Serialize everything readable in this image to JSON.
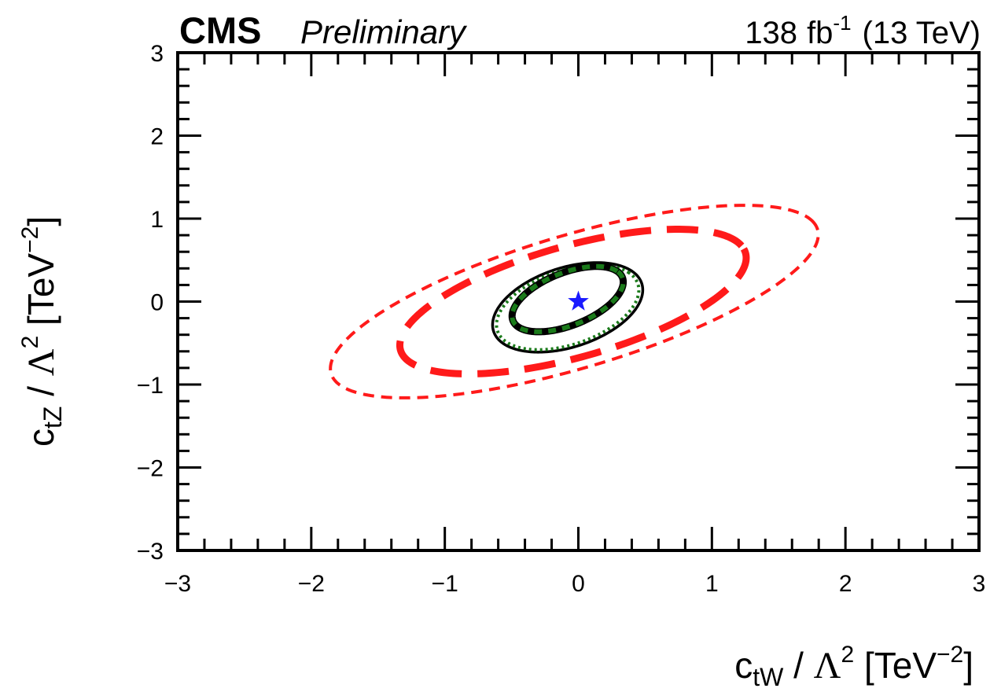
{
  "header": {
    "experiment": "CMS",
    "status": "Preliminary",
    "lumi": "138",
    "lumi_unit": "fb",
    "lumi_exp": "-1",
    "energy": "(13 TeV)"
  },
  "chart_data": {
    "type": "contour",
    "title": "",
    "xlabel": {
      "base": "c",
      "sub": "tW",
      "mid": " / ",
      "greek": "Λ",
      "sup": "2",
      "unit_open": " [TeV",
      "unit_exp": "−2",
      "unit_close": "]"
    },
    "ylabel": {
      "base": "c",
      "sub": "tZ",
      "mid": " / ",
      "greek": "Λ",
      "sup": "2",
      "unit_open": " [TeV",
      "unit_exp": "−2",
      "unit_close": "]"
    },
    "xlim": [
      -3,
      3
    ],
    "ylim": [
      -3,
      3
    ],
    "xticks": [
      -3,
      -2,
      -1,
      0,
      1,
      2,
      3
    ],
    "yticks": [
      -3,
      -2,
      -1,
      0,
      1,
      2,
      3
    ],
    "xtick_labels": [
      "−3",
      "−2",
      "−1",
      "0",
      "1",
      "2",
      "3"
    ],
    "ytick_labels": [
      "−3",
      "−2",
      "−1",
      "0",
      "1",
      "2",
      "3"
    ],
    "grid": false,
    "best_fit": {
      "x": 0.0,
      "y": 0.0,
      "marker": "star",
      "color": "#1a1aff"
    },
    "contours": [
      {
        "id": "red-outer",
        "cx": -0.03,
        "cy": 0.0,
        "a": 2.03,
        "b": 0.75,
        "angle_deg": 28,
        "color": "#ff1a1a",
        "style": "dashed",
        "weight": "thin"
      },
      {
        "id": "red-inner",
        "cx": -0.04,
        "cy": 0.0,
        "a": 1.43,
        "b": 0.63,
        "angle_deg": 28,
        "color": "#ff1a1a",
        "style": "dashed",
        "weight": "thick"
      },
      {
        "id": "black-outer",
        "cx": -0.08,
        "cy": -0.07,
        "a": 0.65,
        "b": 0.43,
        "angle_deg": 42,
        "color": "#000000",
        "style": "solid",
        "weight": "thin"
      },
      {
        "id": "green-outer",
        "cx": -0.08,
        "cy": -0.07,
        "a": 0.62,
        "b": 0.4,
        "angle_deg": 42,
        "color": "#1a7a1a",
        "style": "dotted",
        "weight": "thin"
      },
      {
        "id": "black-inner",
        "cx": -0.08,
        "cy": 0.03,
        "a": 0.5,
        "b": 0.28,
        "angle_deg": 42,
        "color": "#000000",
        "style": "solid",
        "weight": "thick"
      },
      {
        "id": "green-inner",
        "cx": -0.08,
        "cy": 0.03,
        "a": 0.5,
        "b": 0.28,
        "angle_deg": 42,
        "color": "#1a7a1a",
        "style": "dotted",
        "weight": "thick"
      }
    ]
  }
}
